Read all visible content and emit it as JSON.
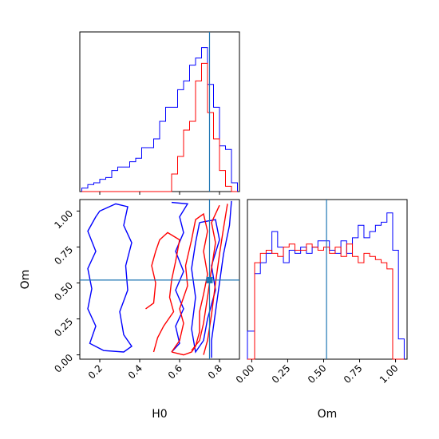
{
  "chart_data": {
    "type": "corner",
    "parameters": [
      "H0",
      "Om"
    ],
    "truth": {
      "H0": 0.75,
      "Om": 0.52
    },
    "colors": {
      "samples_a": "#0000ff",
      "samples_b": "#ff0000",
      "truth": "#1f77b4"
    },
    "h0_ticks": [
      "0.2",
      "0.4",
      "0.6",
      "0.8"
    ],
    "om_ticks": [
      "0.00",
      "0.25",
      "0.50",
      "0.75",
      "1.00"
    ],
    "xlabel_h0": "H0",
    "xlabel_om": "Om",
    "ylabel_om": "Om",
    "h0_range": [
      0.1,
      0.9
    ],
    "om_range": [
      -0.03,
      1.08
    ],
    "hist_h0": {
      "edges": [
        0.11,
        0.14,
        0.17,
        0.2,
        0.23,
        0.26,
        0.29,
        0.32,
        0.35,
        0.38,
        0.41,
        0.44,
        0.47,
        0.5,
        0.53,
        0.56,
        0.59,
        0.62,
        0.65,
        0.68,
        0.71,
        0.74,
        0.77,
        0.8,
        0.83,
        0.86,
        0.89
      ],
      "blue": [
        0.02,
        0.04,
        0.05,
        0.07,
        0.08,
        0.12,
        0.14,
        0.14,
        0.17,
        0.19,
        0.25,
        0.25,
        0.3,
        0.4,
        0.48,
        0.48,
        0.58,
        0.63,
        0.72,
        0.76,
        0.82,
        0.61,
        0.48,
        0.26,
        0.24,
        0.05
      ],
      "red": [
        0.0,
        0.0,
        0.0,
        0.0,
        0.0,
        0.0,
        0.0,
        0.0,
        0.0,
        0.0,
        0.0,
        0.0,
        0.0,
        0.0,
        0.0,
        0.1,
        0.2,
        0.35,
        0.4,
        0.63,
        0.73,
        0.45,
        0.3,
        0.12,
        0.03,
        0.0
      ]
    },
    "hist_om": {
      "edges": [
        -0.03,
        0.02,
        0.06,
        0.1,
        0.14,
        0.18,
        0.22,
        0.26,
        0.3,
        0.34,
        0.38,
        0.42,
        0.46,
        0.5,
        0.54,
        0.58,
        0.62,
        0.66,
        0.7,
        0.74,
        0.78,
        0.82,
        0.86,
        0.9,
        0.94,
        0.98,
        1.02,
        1.06
      ],
      "blue": [
        0.18,
        0.55,
        0.62,
        0.68,
        0.82,
        0.72,
        0.62,
        0.7,
        0.68,
        0.72,
        0.68,
        0.72,
        0.76,
        0.76,
        0.7,
        0.68,
        0.76,
        0.68,
        0.78,
        0.86,
        0.78,
        0.82,
        0.86,
        0.88,
        0.94,
        0.7,
        0.13
      ],
      "red": [
        0.0,
        0.62,
        0.68,
        0.7,
        0.68,
        0.66,
        0.72,
        0.74,
        0.7,
        0.7,
        0.74,
        0.72,
        0.7,
        0.72,
        0.68,
        0.72,
        0.66,
        0.74,
        0.66,
        0.62,
        0.68,
        0.66,
        0.64,
        0.62,
        0.58,
        0.0,
        0.0
      ]
    },
    "contours": {
      "blue": [
        [
          [
            0.18,
            0.96
          ],
          [
            0.2,
            1.0
          ],
          [
            0.28,
            1.05
          ],
          [
            0.34,
            1.03
          ],
          [
            0.32,
            0.9
          ],
          [
            0.36,
            0.78
          ],
          [
            0.33,
            0.62
          ],
          [
            0.34,
            0.45
          ],
          [
            0.3,
            0.3
          ],
          [
            0.32,
            0.14
          ],
          [
            0.36,
            0.06
          ],
          [
            0.32,
            0.02
          ],
          [
            0.22,
            0.03
          ],
          [
            0.15,
            0.08
          ],
          [
            0.18,
            0.2
          ],
          [
            0.14,
            0.32
          ],
          [
            0.16,
            0.46
          ],
          [
            0.14,
            0.6
          ],
          [
            0.18,
            0.72
          ],
          [
            0.14,
            0.86
          ],
          [
            0.18,
            0.96
          ]
        ],
        [
          [
            0.56,
            1.06
          ],
          [
            0.64,
            1.05
          ],
          [
            0.6,
            0.96
          ],
          [
            0.62,
            0.85
          ],
          [
            0.58,
            0.72
          ],
          [
            0.62,
            0.58
          ],
          [
            0.58,
            0.45
          ],
          [
            0.62,
            0.32
          ],
          [
            0.58,
            0.2
          ],
          [
            0.6,
            0.08
          ],
          [
            0.56,
            0.02
          ]
        ],
        [
          [
            0.7,
            0.92
          ],
          [
            0.78,
            0.94
          ],
          [
            0.8,
            0.8
          ],
          [
            0.76,
            0.62
          ],
          [
            0.78,
            0.45
          ],
          [
            0.74,
            0.25
          ],
          [
            0.72,
            0.1
          ],
          [
            0.68,
            0.02
          ],
          [
            0.66,
            0.18
          ],
          [
            0.68,
            0.4
          ],
          [
            0.66,
            0.6
          ],
          [
            0.68,
            0.78
          ],
          [
            0.7,
            0.92
          ]
        ],
        [
          [
            0.86,
            1.07
          ],
          [
            0.85,
            0.9
          ],
          [
            0.82,
            0.7
          ],
          [
            0.8,
            0.5
          ],
          [
            0.78,
            0.3
          ],
          [
            0.76,
            0.1
          ],
          [
            0.76,
            -0.02
          ]
        ]
      ],
      "red": [
        [
          [
            0.43,
            0.32
          ],
          [
            0.47,
            0.36
          ],
          [
            0.48,
            0.5
          ],
          [
            0.46,
            0.62
          ],
          [
            0.48,
            0.72
          ],
          [
            0.5,
            0.8
          ],
          [
            0.54,
            0.85
          ],
          [
            0.6,
            0.8
          ],
          [
            0.58,
            0.65
          ],
          [
            0.56,
            0.52
          ],
          [
            0.55,
            0.4
          ],
          [
            0.57,
            0.3
          ],
          [
            0.52,
            0.2
          ],
          [
            0.49,
            0.12
          ],
          [
            0.47,
            0.02
          ]
        ],
        [
          [
            0.56,
            0.02
          ],
          [
            0.6,
            0.1
          ],
          [
            0.62,
            0.22
          ],
          [
            0.6,
            0.32
          ],
          [
            0.64,
            0.48
          ],
          [
            0.63,
            0.62
          ],
          [
            0.66,
            0.8
          ],
          [
            0.68,
            0.94
          ],
          [
            0.72,
            0.98
          ],
          [
            0.74,
            0.86
          ],
          [
            0.72,
            0.72
          ],
          [
            0.74,
            0.56
          ],
          [
            0.72,
            0.42
          ],
          [
            0.7,
            0.3
          ],
          [
            0.7,
            0.16
          ],
          [
            0.68,
            0.06
          ],
          [
            0.66,
            0.02
          ],
          [
            0.62,
            0.0
          ],
          [
            0.56,
            0.02
          ]
        ],
        [
          [
            0.8,
            1.04
          ],
          [
            0.76,
            0.92
          ],
          [
            0.78,
            0.78
          ],
          [
            0.76,
            0.6
          ],
          [
            0.74,
            0.4
          ],
          [
            0.72,
            0.22
          ],
          [
            0.7,
            0.1
          ],
          [
            0.66,
            0.03
          ]
        ],
        [
          [
            0.84,
            1.05
          ],
          [
            0.82,
            0.88
          ],
          [
            0.8,
            0.7
          ],
          [
            0.78,
            0.5
          ],
          [
            0.76,
            0.28
          ],
          [
            0.74,
            0.1
          ],
          [
            0.72,
            0.0
          ]
        ]
      ]
    }
  }
}
